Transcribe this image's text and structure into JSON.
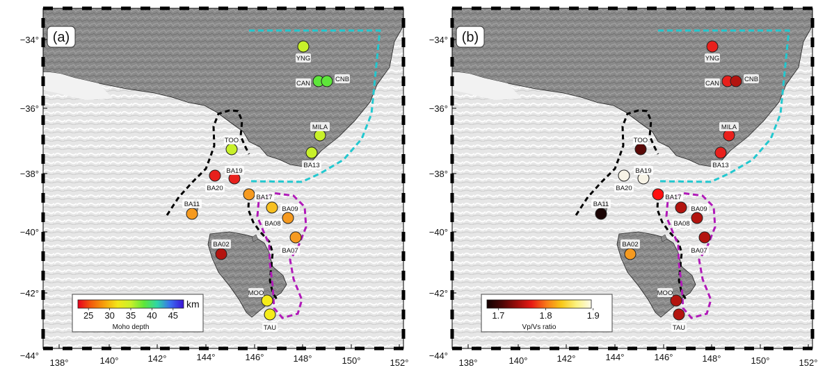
{
  "panels": [
    {
      "id": "a",
      "panel_label": "(a)",
      "colorbar": {
        "title": "Moho depth",
        "unit": "km",
        "ticks": [
          "25",
          "30",
          "35",
          "40",
          "45"
        ]
      },
      "stations": [
        {
          "name": "YNG",
          "value_class": "yellow-green"
        },
        {
          "name": "CAN",
          "value_class": "green"
        },
        {
          "name": "CNB",
          "value_class": "green"
        },
        {
          "name": "MILA",
          "value_class": "yellow-green"
        },
        {
          "name": "BA13",
          "value_class": "yellow-green"
        },
        {
          "name": "TOO",
          "value_class": "yellow-green"
        },
        {
          "name": "BA19",
          "value_class": "red"
        },
        {
          "name": "BA20",
          "value_class": "red"
        },
        {
          "name": "BA17",
          "value_class": "orange"
        },
        {
          "name": "BA09",
          "value_class": "orange-yellow"
        },
        {
          "name": "BA08",
          "value_class": "orange"
        },
        {
          "name": "BA07",
          "value_class": "orange"
        },
        {
          "name": "BA11",
          "value_class": "orange"
        },
        {
          "name": "BA02",
          "value_class": "dark-red"
        },
        {
          "name": "MOO",
          "value_class": "yellow"
        },
        {
          "name": "TAU",
          "value_class": "yellow"
        }
      ]
    },
    {
      "id": "b",
      "panel_label": "(b)",
      "colorbar": {
        "title": "Vp/Vs ratio",
        "unit": "",
        "ticks": [
          "1.7",
          "1.8",
          "1.9"
        ]
      },
      "stations": [
        {
          "name": "YNG",
          "value_class": "red"
        },
        {
          "name": "CAN",
          "value_class": "red"
        },
        {
          "name": "CNB",
          "value_class": "dark-red"
        },
        {
          "name": "MILA",
          "value_class": "red"
        },
        {
          "name": "BA13",
          "value_class": "red"
        },
        {
          "name": "TOO",
          "value_class": "very-dark-red"
        },
        {
          "name": "BA19",
          "value_class": "white"
        },
        {
          "name": "BA20",
          "value_class": "white"
        },
        {
          "name": "BA17",
          "value_class": "bright-red"
        },
        {
          "name": "BA09",
          "value_class": "dark-red"
        },
        {
          "name": "BA08",
          "value_class": "dark-red"
        },
        {
          "name": "BA07",
          "value_class": "dark-red"
        },
        {
          "name": "BA11",
          "value_class": "black"
        },
        {
          "name": "BA02",
          "value_class": "orange"
        },
        {
          "name": "MOO",
          "value_class": "dark-red"
        },
        {
          "name": "TAU",
          "value_class": "dark-red"
        }
      ]
    }
  ],
  "axes": {
    "lat_ticks": [
      "−34°",
      "−36°",
      "−38°",
      "−40°",
      "−42°",
      "−44°"
    ],
    "lon_ticks": [
      "138°",
      "140°",
      "142°",
      "144°",
      "146°",
      "148°",
      "150°",
      "152°"
    ]
  },
  "colors": {
    "land": "#8a8a8a",
    "ocean": "#e6e6e6",
    "cyan_box": "#22c8cf",
    "magenta_outline": "#b01ab8",
    "black_outline": "#000000",
    "yellow-green": "#c8f02a",
    "green": "#5ee63a",
    "red": "#e8201c",
    "dark-red": "#b3140f",
    "very-dark-red": "#5a0a08",
    "bright-red": "#ff1010",
    "orange": "#f59a20",
    "orange-yellow": "#f8c020",
    "yellow": "#f5ec1a",
    "white": "#f7f3e6",
    "black": "#1a0404"
  }
}
